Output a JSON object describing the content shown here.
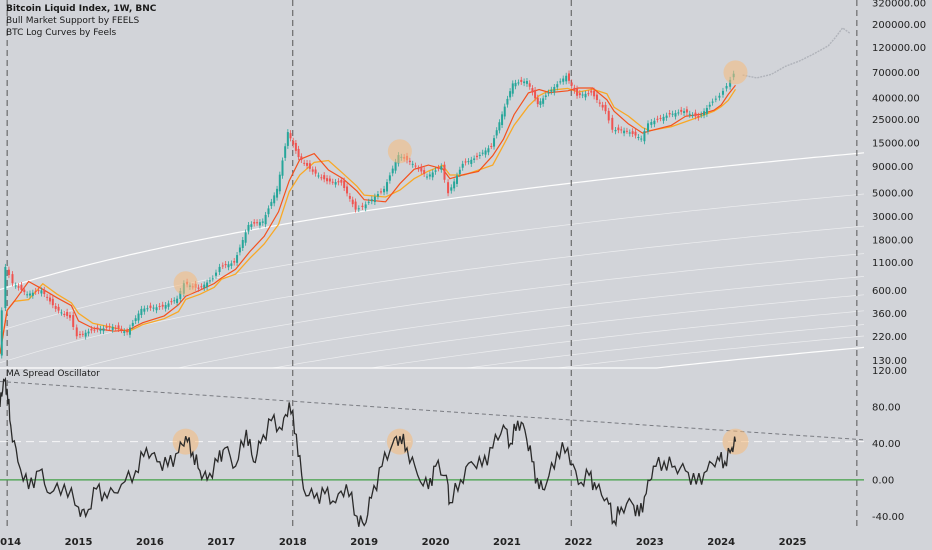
{
  "header": {
    "lines": [
      "Bitcoin Liquid Index, 1W, BNC",
      "Bull Market Support by FEELS",
      "BTC Log Curves by Feels"
    ]
  },
  "colors": {
    "background": "#d2d4d9",
    "up_candle": "#26a69a",
    "down_candle": "#ef5350",
    "ma_fast": "#f4511e",
    "ma_slow": "#f9a825",
    "curves": "#ffffff",
    "oscillator": "#2a2a2a",
    "zero_line": "#43a047",
    "highlight": "#f5b97a"
  },
  "chart_data": [
    {
      "type": "line",
      "name": "price",
      "scale": "log",
      "title": "",
      "y_ticks": [
        130,
        220,
        360,
        600,
        1100,
        1800,
        3000,
        5000,
        9000,
        15000,
        25000,
        40000,
        70000,
        120000,
        200000,
        320000
      ],
      "y_tick_labels": [
        "130.00",
        "220.00",
        "360.00",
        "600.00",
        "1100.00",
        "1800.00",
        "3000.00",
        "5000.00",
        "9000.00",
        "15000.00",
        "25000.00",
        "40000.00",
        "70000.00",
        "120000.00",
        "200000.00",
        "320000.00"
      ],
      "x_ticks": [
        "2014",
        "2015",
        "2016",
        "2017",
        "2018",
        "2019",
        "2020",
        "2021",
        "2022",
        "2023",
        "2024",
        "2025"
      ],
      "cycle_lines": [
        2014.0,
        2018.0,
        2021.9,
        2025.9
      ],
      "x_range": [
        2013.9,
        2026.0
      ],
      "y_range": [
        110,
        340000
      ],
      "price_points": [
        [
          2013.9,
          150
        ],
        [
          2014.0,
          1000
        ],
        [
          2014.1,
          700
        ],
        [
          2014.3,
          550
        ],
        [
          2014.5,
          600
        ],
        [
          2014.7,
          400
        ],
        [
          2014.9,
          330
        ],
        [
          2015.0,
          220
        ],
        [
          2015.2,
          250
        ],
        [
          2015.5,
          270
        ],
        [
          2015.7,
          240
        ],
        [
          2015.9,
          400
        ],
        [
          2016.2,
          420
        ],
        [
          2016.4,
          500
        ],
        [
          2016.5,
          700
        ],
        [
          2016.7,
          620
        ],
        [
          2016.9,
          780
        ],
        [
          2017.0,
          1000
        ],
        [
          2017.2,
          1100
        ],
        [
          2017.4,
          2500
        ],
        [
          2017.6,
          2700
        ],
        [
          2017.8,
          5500
        ],
        [
          2017.95,
          19000
        ],
        [
          2018.1,
          11000
        ],
        [
          2018.3,
          8000
        ],
        [
          2018.5,
          6500
        ],
        [
          2018.7,
          6300
        ],
        [
          2018.9,
          3500
        ],
        [
          2019.0,
          3700
        ],
        [
          2019.3,
          5500
        ],
        [
          2019.5,
          11500
        ],
        [
          2019.7,
          9500
        ],
        [
          2019.9,
          7200
        ],
        [
          2020.1,
          9000
        ],
        [
          2020.2,
          5000
        ],
        [
          2020.4,
          9500
        ],
        [
          2020.6,
          11000
        ],
        [
          2020.8,
          14000
        ],
        [
          2020.95,
          28000
        ],
        [
          2021.1,
          55000
        ],
        [
          2021.3,
          58000
        ],
        [
          2021.45,
          35000
        ],
        [
          2021.6,
          45000
        ],
        [
          2021.85,
          65000
        ],
        [
          2022.0,
          42000
        ],
        [
          2022.2,
          45000
        ],
        [
          2022.4,
          30000
        ],
        [
          2022.5,
          20000
        ],
        [
          2022.7,
          19500
        ],
        [
          2022.9,
          16500
        ],
        [
          2023.0,
          23000
        ],
        [
          2023.3,
          28000
        ],
        [
          2023.5,
          30000
        ],
        [
          2023.7,
          26000
        ],
        [
          2023.9,
          37000
        ],
        [
          2024.0,
          42000
        ],
        [
          2024.1,
          52000
        ],
        [
          2024.2,
          68000
        ]
      ],
      "projection_points": [
        [
          2024.3,
          66000
        ],
        [
          2024.5,
          62000
        ],
        [
          2024.7,
          67000
        ],
        [
          2024.9,
          80000
        ],
        [
          2025.1,
          90000
        ],
        [
          2025.3,
          105000
        ],
        [
          2025.5,
          125000
        ],
        [
          2025.6,
          150000
        ],
        [
          2025.7,
          185000
        ],
        [
          2025.8,
          165000
        ]
      ],
      "highlights": [
        [
          2016.5,
          700
        ],
        [
          2019.5,
          12500
        ],
        [
          2024.2,
          70000
        ]
      ]
    },
    {
      "type": "line",
      "name": "oscillator",
      "title": "MA Spread Oscillator",
      "y_ticks": [
        -40,
        0,
        40,
        80,
        120
      ],
      "y_tick_labels": [
        "-40.00",
        "0.00",
        "40.00",
        "80.00",
        "120.00"
      ],
      "y_range": [
        -55,
        125
      ],
      "zero_line": 0,
      "dashed_level": 42,
      "trend_line": [
        [
          2013.9,
          108
        ],
        [
          2026.0,
          44
        ]
      ],
      "x_range": [
        2013.9,
        2026.0
      ],
      "values": [
        [
          2013.9,
          80
        ],
        [
          2013.95,
          110
        ],
        [
          2014.0,
          100
        ],
        [
          2014.05,
          60
        ],
        [
          2014.15,
          20
        ],
        [
          2014.3,
          -10
        ],
        [
          2014.45,
          10
        ],
        [
          2014.6,
          -15
        ],
        [
          2014.8,
          -5
        ],
        [
          2015.0,
          -30
        ],
        [
          2015.1,
          -40
        ],
        [
          2015.25,
          -10
        ],
        [
          2015.4,
          -20
        ],
        [
          2015.6,
          -5
        ],
        [
          2015.8,
          10
        ],
        [
          2015.95,
          35
        ],
        [
          2016.1,
          20
        ],
        [
          2016.25,
          15
        ],
        [
          2016.4,
          30
        ],
        [
          2016.5,
          48
        ],
        [
          2016.6,
          30
        ],
        [
          2016.7,
          10
        ],
        [
          2016.8,
          0
        ],
        [
          2016.95,
          20
        ],
        [
          2017.05,
          35
        ],
        [
          2017.2,
          15
        ],
        [
          2017.35,
          55
        ],
        [
          2017.45,
          20
        ],
        [
          2017.55,
          40
        ],
        [
          2017.7,
          65
        ],
        [
          2017.85,
          55
        ],
        [
          2017.95,
          85
        ],
        [
          2018.05,
          50
        ],
        [
          2018.15,
          -10
        ],
        [
          2018.3,
          -20
        ],
        [
          2018.45,
          -15
        ],
        [
          2018.6,
          -25
        ],
        [
          2018.75,
          -5
        ],
        [
          2018.9,
          -40
        ],
        [
          2019.0,
          -50
        ],
        [
          2019.1,
          -20
        ],
        [
          2019.25,
          15
        ],
        [
          2019.4,
          40
        ],
        [
          2019.5,
          48
        ],
        [
          2019.6,
          35
        ],
        [
          2019.75,
          5
        ],
        [
          2019.9,
          -10
        ],
        [
          2020.0,
          15
        ],
        [
          2020.15,
          5
        ],
        [
          2020.2,
          -25
        ],
        [
          2020.35,
          0
        ],
        [
          2020.5,
          20
        ],
        [
          2020.65,
          15
        ],
        [
          2020.8,
          35
        ],
        [
          2020.95,
          60
        ],
        [
          2021.05,
          40
        ],
        [
          2021.15,
          65
        ],
        [
          2021.25,
          55
        ],
        [
          2021.35,
          20
        ],
        [
          2021.45,
          -10
        ],
        [
          2021.55,
          -5
        ],
        [
          2021.7,
          30
        ],
        [
          2021.85,
          35
        ],
        [
          2022.0,
          -5
        ],
        [
          2022.15,
          5
        ],
        [
          2022.25,
          -10
        ],
        [
          2022.4,
          -20
        ],
        [
          2022.5,
          -45
        ],
        [
          2022.6,
          -30
        ],
        [
          2022.75,
          -25
        ],
        [
          2022.85,
          -40
        ],
        [
          2022.95,
          -15
        ],
        [
          2023.05,
          15
        ],
        [
          2023.2,
          20
        ],
        [
          2023.35,
          15
        ],
        [
          2023.5,
          10
        ],
        [
          2023.65,
          -5
        ],
        [
          2023.8,
          10
        ],
        [
          2023.95,
          25
        ],
        [
          2024.05,
          20
        ],
        [
          2024.15,
          35
        ],
        [
          2024.2,
          42
        ]
      ],
      "highlights": [
        [
          2016.5,
          42
        ],
        [
          2019.5,
          42
        ],
        [
          2024.2,
          42
        ]
      ]
    }
  ]
}
